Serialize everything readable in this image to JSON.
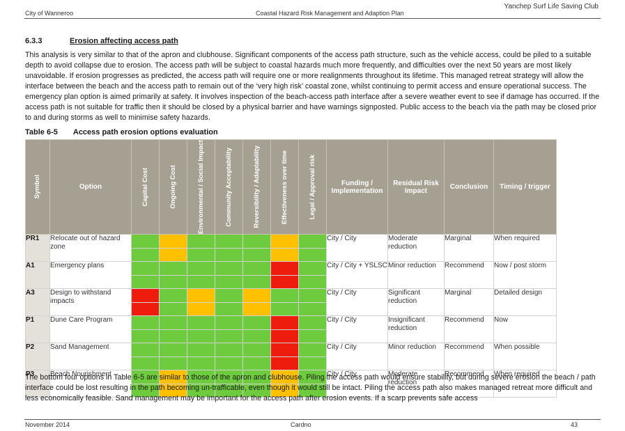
{
  "header": {
    "org": "Yanchep Surf Life Saving Club",
    "council": "City of Wanneroo",
    "plan": "Coastal Hazard Risk Management and Adaption Plan"
  },
  "section": {
    "number": "6.3.3",
    "title": "Erosion affecting access path",
    "intro": "This analysis is very similar to that of the apron and clubhouse. Significant components of the access path structure, such as the vehicle access, could be piled to a suitable depth to avoid collapse due to erosion. The access path will be subject to coastal hazards much more frequently, and difficulties over the next 50 years are most likely unavoidable. If erosion progresses as predicted, the access path will require one or more realignments throughout its lifetime. This managed retreat strategy will allow the interface between the beach and the access path to remain out of the ‘very high risk’ coastal zone, whilst continuing to permit access and ensure operational success. The emergency plan option is aimed primarily at safety. It involves inspection of the beach-access path interface after a severe weather event to see if damage has occurred. If the access path is not suitable for traffic then it should be closed by a physical barrier and have warnings signposted. Public access to the beach via the path may be closed prior to and during storms as well to minimise safety hazards.",
    "closing": "The bottom four options in Table 6-5 are similar to those of the apron and clubhouse. Piling the access path would ensure stability, but during severe erosion the beach / path interface could be lost resulting in the path becoming un-trafficable, even though it would still be intact. Piling the access path also makes managed retreat more difficult and less economically feasible. Sand management may be important for the access path after erosion events. If a scarp prevents safe access"
  },
  "table": {
    "caption_label": "Table 6-5",
    "caption_title": "Access path erosion options evaluation",
    "headers": {
      "symbol": "Symbol",
      "option": "Option",
      "capital": "Capital Cost",
      "ongoing": "Ongoing Cost",
      "environmental": "Environmental / Social Impact",
      "community": "Community Acceptability",
      "reversibility": "Reversibility / Adaptability",
      "effectiveness": "Effectiveness over time",
      "legal": "Legal / Approval risk",
      "funding": "Funding / Implementation",
      "residual": "Residual Risk Impact",
      "conclusion": "Conclusion",
      "timing": "Timing / trigger"
    },
    "rows": [
      {
        "symbol": "PR1",
        "option": "Relocate out of hazard zone",
        "funding": "City / City",
        "residual": "Moderate reduction",
        "conclusion": "Marginal",
        "timing": "When required"
      },
      {
        "symbol": "A1",
        "option": "Emergency plans",
        "funding": "City / City + YSLSC",
        "residual": "Minor reduction",
        "conclusion": "Recommend",
        "timing": "Now / post storm"
      },
      {
        "symbol": "A3",
        "option": "Design to withstand impacts",
        "funding": "City / City",
        "residual": "Significant reduction",
        "conclusion": "Marginal",
        "timing": "Detailed design"
      },
      {
        "symbol": "P1",
        "option": "Dune Care Program",
        "funding": "City / City",
        "residual": "Insignificant reduction",
        "conclusion": "Recommend",
        "timing": "Now"
      },
      {
        "symbol": "P2",
        "option": "Sand Management",
        "funding": "City / City",
        "residual": "Minor reduction",
        "conclusion": "Recommend",
        "timing": "When possible"
      },
      {
        "symbol": "P3",
        "option": "Beach Nourishment",
        "funding": "City / City",
        "residual": "Moderate reduction",
        "conclusion": "Recommend",
        "timing": "When required"
      }
    ],
    "colors": {
      "green": "#6ecb3d",
      "amber": "#ffc000",
      "red": "#ee1c0c"
    }
  },
  "footer": {
    "date": "November 2014",
    "company": "Cardno",
    "page": "43"
  }
}
